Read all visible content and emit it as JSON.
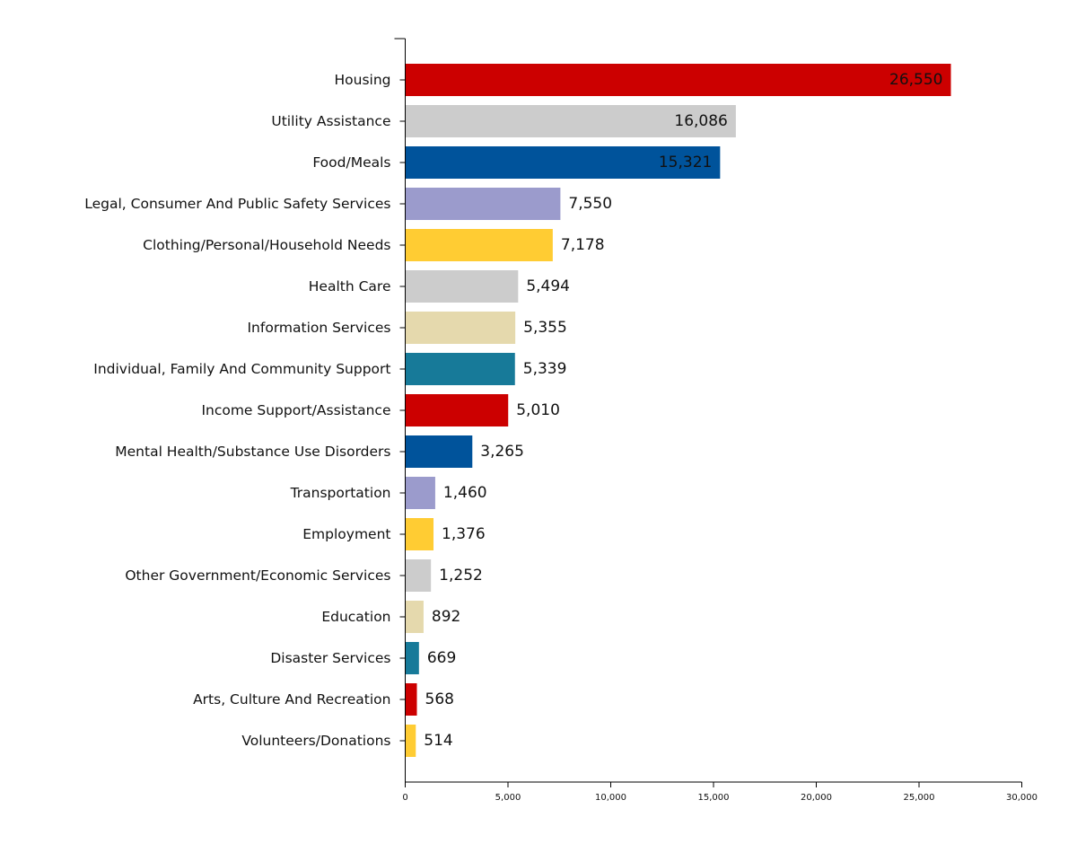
{
  "chart_data": {
    "type": "bar",
    "orientation": "horizontal",
    "title": "",
    "xlabel": "",
    "ylabel": "",
    "xlim": [
      0,
      30000
    ],
    "x_ticks": [
      0,
      5000,
      10000,
      15000,
      20000,
      25000,
      30000
    ],
    "x_tick_labels": [
      "0",
      "5,000",
      "10,000",
      "15,000",
      "20,000",
      "25,000",
      "30,000"
    ],
    "grid": false,
    "legend": "none",
    "categories": [
      "Housing",
      "Utility Assistance",
      "Food/Meals",
      "Legal, Consumer And Public Safety Services",
      "Clothing/Personal/Household Needs",
      "Health Care",
      "Information Services",
      "Individual, Family And Community Support",
      "Income Support/Assistance",
      "Mental Health/Substance Use Disorders",
      "Transportation",
      "Employment",
      "Other Government/Economic Services",
      "Education",
      "Disaster Services",
      "Arts, Culture And Recreation",
      "Volunteers/Donations"
    ],
    "values": [
      26550,
      16086,
      15321,
      7550,
      7178,
      5494,
      5355,
      5339,
      5010,
      3265,
      1460,
      1376,
      1252,
      892,
      669,
      568,
      514
    ],
    "value_labels": [
      "26,550",
      "16,086",
      "15,321",
      "7,550",
      "7,178",
      "5,494",
      "5,355",
      "5,339",
      "5,010",
      "3,265",
      "1,460",
      "1,376",
      "1,252",
      "892",
      "669",
      "568",
      "514"
    ],
    "colors": [
      "#cc0000",
      "#cccccc",
      "#00539b",
      "#9b9bcc",
      "#ffcc33",
      "#cccccc",
      "#e5d9ad",
      "#177a99",
      "#cc0000",
      "#00539b",
      "#9b9bcc",
      "#ffcc33",
      "#cccccc",
      "#e5d9ad",
      "#177a99",
      "#cc0000",
      "#ffcc33"
    ]
  }
}
